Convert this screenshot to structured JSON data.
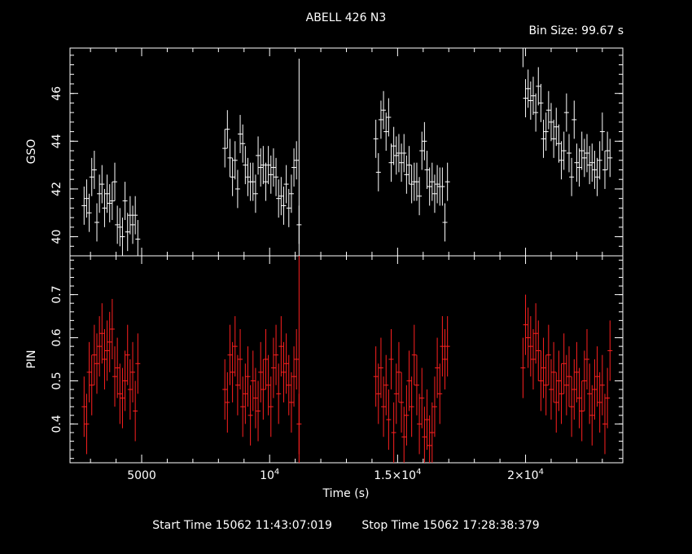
{
  "header": {
    "title": "ABELL 426 N3",
    "bin_size": "Bin Size: 99.67 s"
  },
  "footer": {
    "start_time": "Start Time 15062 11:43:07:019",
    "stop_time": "Stop Time 15062 17:28:38:379"
  },
  "colors": {
    "background": "#000000",
    "gso_series": "#ffffff",
    "pin_series": "#ff2020",
    "axes": "#ffffff"
  },
  "chart_data": [
    {
      "type": "scatter",
      "panel": "top",
      "ylabel": "GSO",
      "xlim": [
        2200,
        23800
      ],
      "ylim": [
        39.2,
        47.9
      ],
      "yticks": [
        40,
        42,
        44,
        46
      ],
      "ytick_labels": [
        "40",
        "42",
        "44",
        "46"
      ],
      "series": [
        {
          "x": [
            2750,
            2850,
            2950,
            3050,
            3150,
            3250,
            3350,
            3450,
            3550,
            3650,
            3750,
            3850,
            3950,
            4050,
            4150,
            4250,
            4350,
            4450,
            4550,
            4650,
            4750,
            4850,
            8250,
            8350,
            8450,
            8550,
            8650,
            8750,
            8850,
            8950,
            9050,
            9150,
            9250,
            9350,
            9450,
            9550,
            9650,
            9750,
            9850,
            9950,
            10050,
            10150,
            10250,
            10350,
            10450,
            10550,
            10650,
            10750,
            10850,
            10950,
            11050,
            11150,
            14150,
            14250,
            14350,
            14450,
            14550,
            14650,
            14750,
            14850,
            14950,
            15050,
            15150,
            15250,
            15350,
            15450,
            15550,
            15650,
            15750,
            15850,
            15950,
            16050,
            16150,
            16250,
            16350,
            16450,
            16550,
            16650,
            16750,
            16850,
            16950,
            19900,
            20000,
            20100,
            20200,
            20300,
            20400,
            20500,
            20600,
            20700,
            20800,
            20900,
            21000,
            21100,
            21200,
            21300,
            21400,
            21500,
            21600,
            21700,
            21800,
            21900,
            22000,
            22100,
            22200,
            22300,
            22400,
            22500,
            22600,
            22700,
            22800,
            22900,
            23000,
            23100,
            23200,
            23300
          ],
          "y": [
            41.3,
            41.6,
            41.0,
            42.5,
            42.8,
            40.6,
            41.8,
            42.2,
            41.2,
            41.8,
            41.4,
            41.5,
            42.3,
            40.5,
            40.4,
            40.0,
            41.5,
            40.2,
            40.9,
            40.5,
            40.9,
            39.9,
            43.7,
            44.5,
            43.3,
            42.5,
            43.2,
            42.0,
            44.3,
            43.9,
            43.0,
            42.5,
            42.3,
            42.3,
            41.8,
            43.4,
            42.9,
            43.0,
            42.3,
            43.0,
            42.6,
            42.9,
            42.5,
            41.6,
            41.7,
            41.3,
            42.2,
            41.2,
            41.8,
            42.9,
            43.2,
            40.5,
            44.1,
            42.7,
            44.9,
            45.3,
            44.4,
            45.0,
            43.1,
            43.8,
            43.4,
            43.5,
            43.1,
            43.5,
            42.6,
            43.0,
            42.2,
            42.3,
            42.3,
            41.7,
            43.6,
            44.0,
            42.8,
            42.1,
            42.3,
            41.8,
            42.2,
            42.1,
            42.1,
            40.6,
            42.3,
            47.9,
            45.8,
            46.2,
            45.7,
            45.9,
            45.2,
            46.3,
            45.6,
            44.1,
            44.4,
            45.3,
            44.8,
            44.1,
            44.6,
            43.9,
            43.2,
            43.6,
            45.2,
            43.5,
            42.5,
            44.9,
            43.1,
            42.9,
            43.6,
            43.3,
            43.5,
            43.0,
            43.1,
            42.8,
            42.5,
            43.2,
            44.4,
            42.8,
            43.6,
            43.3
          ],
          "yerr": 0.8
        }
      ]
    },
    {
      "type": "scatter",
      "panel": "bottom",
      "ylabel": "PIN",
      "xlabel": "Time (s)",
      "xlim": [
        2200,
        23800
      ],
      "ylim": [
        0.31,
        0.79
      ],
      "yticks": [
        0.4,
        0.5,
        0.6,
        0.7
      ],
      "ytick_labels": [
        "0.4",
        "0.5",
        "0.6",
        "0.7"
      ],
      "xticks": [
        5000,
        10000,
        15000,
        20000
      ],
      "xtick_labels": [
        {
          "base": "5000",
          "exp": ""
        },
        {
          "base": "10",
          "exp": "4"
        },
        {
          "base": "1.5×10",
          "exp": "4"
        },
        {
          "base": "2×10",
          "exp": "4"
        }
      ],
      "series": [
        {
          "x": [
            2750,
            2850,
            2950,
            3050,
            3150,
            3250,
            3350,
            3450,
            3550,
            3650,
            3750,
            3850,
            3950,
            4050,
            4150,
            4250,
            4350,
            4450,
            4550,
            4650,
            4750,
            4850,
            8250,
            8350,
            8450,
            8550,
            8650,
            8750,
            8850,
            8950,
            9050,
            9150,
            9250,
            9350,
            9450,
            9550,
            9650,
            9750,
            9850,
            9950,
            10050,
            10150,
            10250,
            10350,
            10450,
            10550,
            10650,
            10750,
            10850,
            10950,
            11050,
            11150,
            14150,
            14250,
            14350,
            14450,
            14550,
            14650,
            14750,
            14850,
            14950,
            15050,
            15150,
            15250,
            15350,
            15450,
            15550,
            15650,
            15750,
            15850,
            15950,
            16050,
            16150,
            16250,
            16350,
            16450,
            16550,
            16650,
            16750,
            16850,
            16950,
            19900,
            20000,
            20100,
            20200,
            20300,
            20400,
            20500,
            20600,
            20700,
            20800,
            20900,
            21000,
            21100,
            21200,
            21300,
            21400,
            21500,
            21600,
            21700,
            21800,
            21900,
            22000,
            22100,
            22200,
            22300,
            22400,
            22500,
            22600,
            22700,
            22800,
            22900,
            23000,
            23100,
            23200,
            23300
          ],
          "y": [
            0.44,
            0.4,
            0.52,
            0.49,
            0.56,
            0.54,
            0.58,
            0.61,
            0.55,
            0.57,
            0.59,
            0.62,
            0.51,
            0.53,
            0.47,
            0.46,
            0.5,
            0.56,
            0.48,
            0.52,
            0.43,
            0.54,
            0.48,
            0.45,
            0.56,
            0.52,
            0.58,
            0.49,
            0.55,
            0.44,
            0.47,
            0.51,
            0.42,
            0.5,
            0.46,
            0.43,
            0.52,
            0.48,
            0.55,
            0.49,
            0.44,
            0.53,
            0.56,
            0.47,
            0.58,
            0.52,
            0.54,
            0.49,
            0.45,
            0.51,
            0.55,
            0.4,
            0.51,
            0.47,
            0.53,
            0.44,
            0.49,
            0.41,
            0.55,
            0.38,
            0.47,
            0.52,
            0.45,
            0.37,
            0.42,
            0.5,
            0.44,
            0.56,
            0.49,
            0.4,
            0.46,
            0.37,
            0.41,
            0.35,
            0.38,
            0.44,
            0.53,
            0.47,
            0.58,
            0.55,
            0.58,
            0.53,
            0.63,
            0.6,
            0.58,
            0.55,
            0.61,
            0.57,
            0.5,
            0.53,
            0.49,
            0.56,
            0.48,
            0.52,
            0.45,
            0.5,
            0.47,
            0.54,
            0.49,
            0.51,
            0.44,
            0.48,
            0.52,
            0.46,
            0.43,
            0.5,
            0.55,
            0.47,
            0.42,
            0.48,
            0.51,
            0.45,
            0.49,
            0.4,
            0.46,
            0.57
          ],
          "yerr": 0.07
        }
      ]
    }
  ]
}
